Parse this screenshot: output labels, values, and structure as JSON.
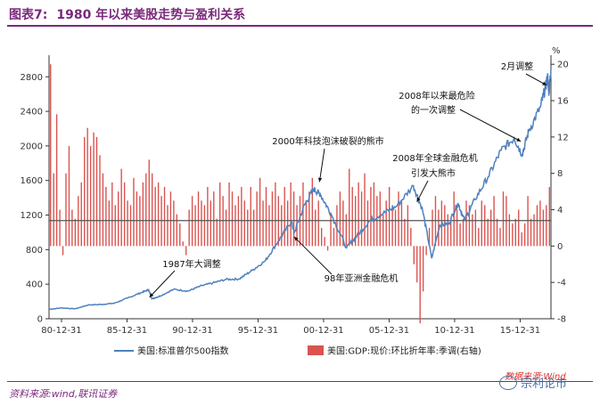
{
  "header": {
    "figure_no": "图表7:",
    "title": "1980 年以来美股走势与盈利关系"
  },
  "footer": {
    "source": "资料来源:wind,联讯证券",
    "watermark": "数据来源:Wind",
    "wechat": "宗利论市"
  },
  "colors": {
    "line": "#4f81bd",
    "bars": "#d9534f",
    "refline": "#555555",
    "brand": "#7a2a7a"
  },
  "chart_data": {
    "type": "line+bar",
    "x_ticks": [
      "80-12-31",
      "85-12-31",
      "90-12-31",
      "95-12-31",
      "00-12-31",
      "05-12-31",
      "10-12-31",
      "15-12-31"
    ],
    "x_tick_years": [
      1980.95,
      1985.95,
      1990.95,
      1995.95,
      2000.95,
      2005.95,
      2010.95,
      2015.95
    ],
    "xlim": [
      1980.0,
      2018.3
    ],
    "y_left": {
      "ticks": [
        0,
        400,
        800,
        1200,
        1600,
        2000,
        2400,
        2800
      ],
      "lim": [
        0,
        3050
      ]
    },
    "y_right": {
      "ticks": [
        -8,
        -4,
        0,
        4,
        8,
        12,
        16,
        20
      ],
      "lim": [
        -8,
        21
      ],
      "unit": "%"
    },
    "reference_line_right": 2.8,
    "legend": [
      {
        "name": "美国:标准普尔500指数",
        "kind": "line"
      },
      {
        "name": "美国:GDP:现价:环比折年率:季调(右轴)",
        "kind": "bar"
      }
    ],
    "series": [
      {
        "name": "美国:标准普尔500指数",
        "axis": "left",
        "points": [
          [
            1980.0,
            110
          ],
          [
            1981.0,
            125
          ],
          [
            1982.0,
            115
          ],
          [
            1983.0,
            160
          ],
          [
            1984.0,
            165
          ],
          [
            1985.0,
            180
          ],
          [
            1986.0,
            240
          ],
          [
            1987.0,
            300
          ],
          [
            1987.6,
            335
          ],
          [
            1987.85,
            230
          ],
          [
            1988.5,
            265
          ],
          [
            1989.5,
            340
          ],
          [
            1990.6,
            320
          ],
          [
            1991.5,
            375
          ],
          [
            1992.5,
            415
          ],
          [
            1993.5,
            455
          ],
          [
            1994.5,
            460
          ],
          [
            1995.5,
            560
          ],
          [
            1996.5,
            670
          ],
          [
            1997.5,
            900
          ],
          [
            1998.5,
            1130
          ],
          [
            1998.7,
            990
          ],
          [
            1999.5,
            1320
          ],
          [
            2000.2,
            1500
          ],
          [
            2000.7,
            1440
          ],
          [
            2001.5,
            1220
          ],
          [
            2002.7,
            820
          ],
          [
            2003.5,
            960
          ],
          [
            2004.5,
            1140
          ],
          [
            2005.5,
            1220
          ],
          [
            2006.5,
            1300
          ],
          [
            2007.8,
            1540
          ],
          [
            2008.5,
            1260
          ],
          [
            2009.2,
            700
          ],
          [
            2009.8,
            1080
          ],
          [
            2010.5,
            1100
          ],
          [
            2011.2,
            1340
          ],
          [
            2011.7,
            1140
          ],
          [
            2012.5,
            1380
          ],
          [
            2013.5,
            1640
          ],
          [
            2014.5,
            1950
          ],
          [
            2015.5,
            2090
          ],
          [
            2016.1,
            1900
          ],
          [
            2016.6,
            2170
          ],
          [
            2017.5,
            2450
          ],
          [
            2017.9,
            2690
          ],
          [
            2018.05,
            2800
          ],
          [
            2018.15,
            2620
          ],
          [
            2018.3,
            2900
          ]
        ]
      },
      {
        "name": "美国:GDP:现价:环比折年率:季调(右轴)",
        "axis": "right",
        "values": [
          20.0,
          8.0,
          14.5,
          4.0,
          -1.0,
          8.0,
          11.0,
          4.0,
          3.0,
          5.5,
          7.0,
          12.0,
          13.0,
          11.0,
          12.5,
          12.0,
          10.0,
          8.0,
          6.5,
          5.0,
          7.0,
          4.5,
          6.0,
          8.5,
          7.0,
          5.0,
          4.5,
          7.5,
          6.0,
          5.5,
          7.0,
          8.0,
          9.5,
          8.0,
          6.5,
          7.0,
          5.5,
          6.5,
          4.5,
          6.0,
          5.0,
          3.5,
          2.5,
          0.5,
          -1.0,
          4.0,
          5.5,
          4.5,
          6.0,
          5.0,
          4.5,
          6.5,
          5.0,
          6.0,
          3.0,
          7.0,
          5.5,
          4.0,
          7.0,
          6.0,
          4.5,
          5.5,
          6.5,
          5.0,
          4.0,
          6.5,
          4.0,
          6.0,
          7.5,
          5.0,
          6.5,
          4.5,
          6.0,
          7.0,
          5.5,
          4.5,
          6.5,
          5.0,
          7.0,
          6.0,
          4.5,
          5.5,
          7.0,
          5.0,
          6.0,
          7.5,
          4.0,
          5.0,
          2.0,
          1.0,
          -0.5,
          3.5,
          2.0,
          4.5,
          6.0,
          5.0,
          3.5,
          8.5,
          6.5,
          5.5,
          7.0,
          6.0,
          8.0,
          5.0,
          6.5,
          7.0,
          5.5,
          6.0,
          3.5,
          5.0,
          6.5,
          4.5,
          4.0,
          6.0,
          5.0,
          3.0,
          4.5,
          2.0,
          -2.0,
          -4.0,
          -8.5,
          -5.0,
          -1.0,
          2.0,
          4.0,
          5.5,
          4.0,
          5.0,
          4.5,
          3.5,
          3.0,
          6.0,
          4.0,
          2.5,
          3.0,
          5.0,
          4.5,
          3.5,
          4.0,
          2.0,
          5.0,
          4.5,
          3.0,
          4.0,
          5.5,
          3.0,
          2.0,
          6.0,
          5.5,
          3.5,
          2.5,
          3.0,
          4.0,
          1.5,
          2.5,
          5.5,
          3.0,
          3.5,
          4.5,
          5.0,
          4.0,
          4.5,
          6.5
        ]
      }
    ],
    "annotations": [
      {
        "text": "1987年大调整",
        "x": 1987.8,
        "y": 300,
        "axis": "left"
      },
      {
        "text": "98年亚洲金融危机",
        "x": 1998.7,
        "y": 990,
        "axis": "left"
      },
      {
        "text": "2000年科技泡沫破裂的熊市",
        "x": 2000.5,
        "y": 1500,
        "axis": "left"
      },
      {
        "text": "2008年全球金融危机",
        "x": 2008.0,
        "y": 1250,
        "axis": "left"
      },
      {
        "text": "引发大熊市",
        "x": 2008.0,
        "y": 1250,
        "axis": "left"
      },
      {
        "text": "2008年以来最危险",
        "x": 2016.0,
        "y": 1950,
        "axis": "left"
      },
      {
        "text": "的一次调整",
        "x": 2016.0,
        "y": 1950,
        "axis": "left"
      },
      {
        "text": "2月调整",
        "x": 2018.1,
        "y": 2620,
        "axis": "left"
      }
    ]
  }
}
